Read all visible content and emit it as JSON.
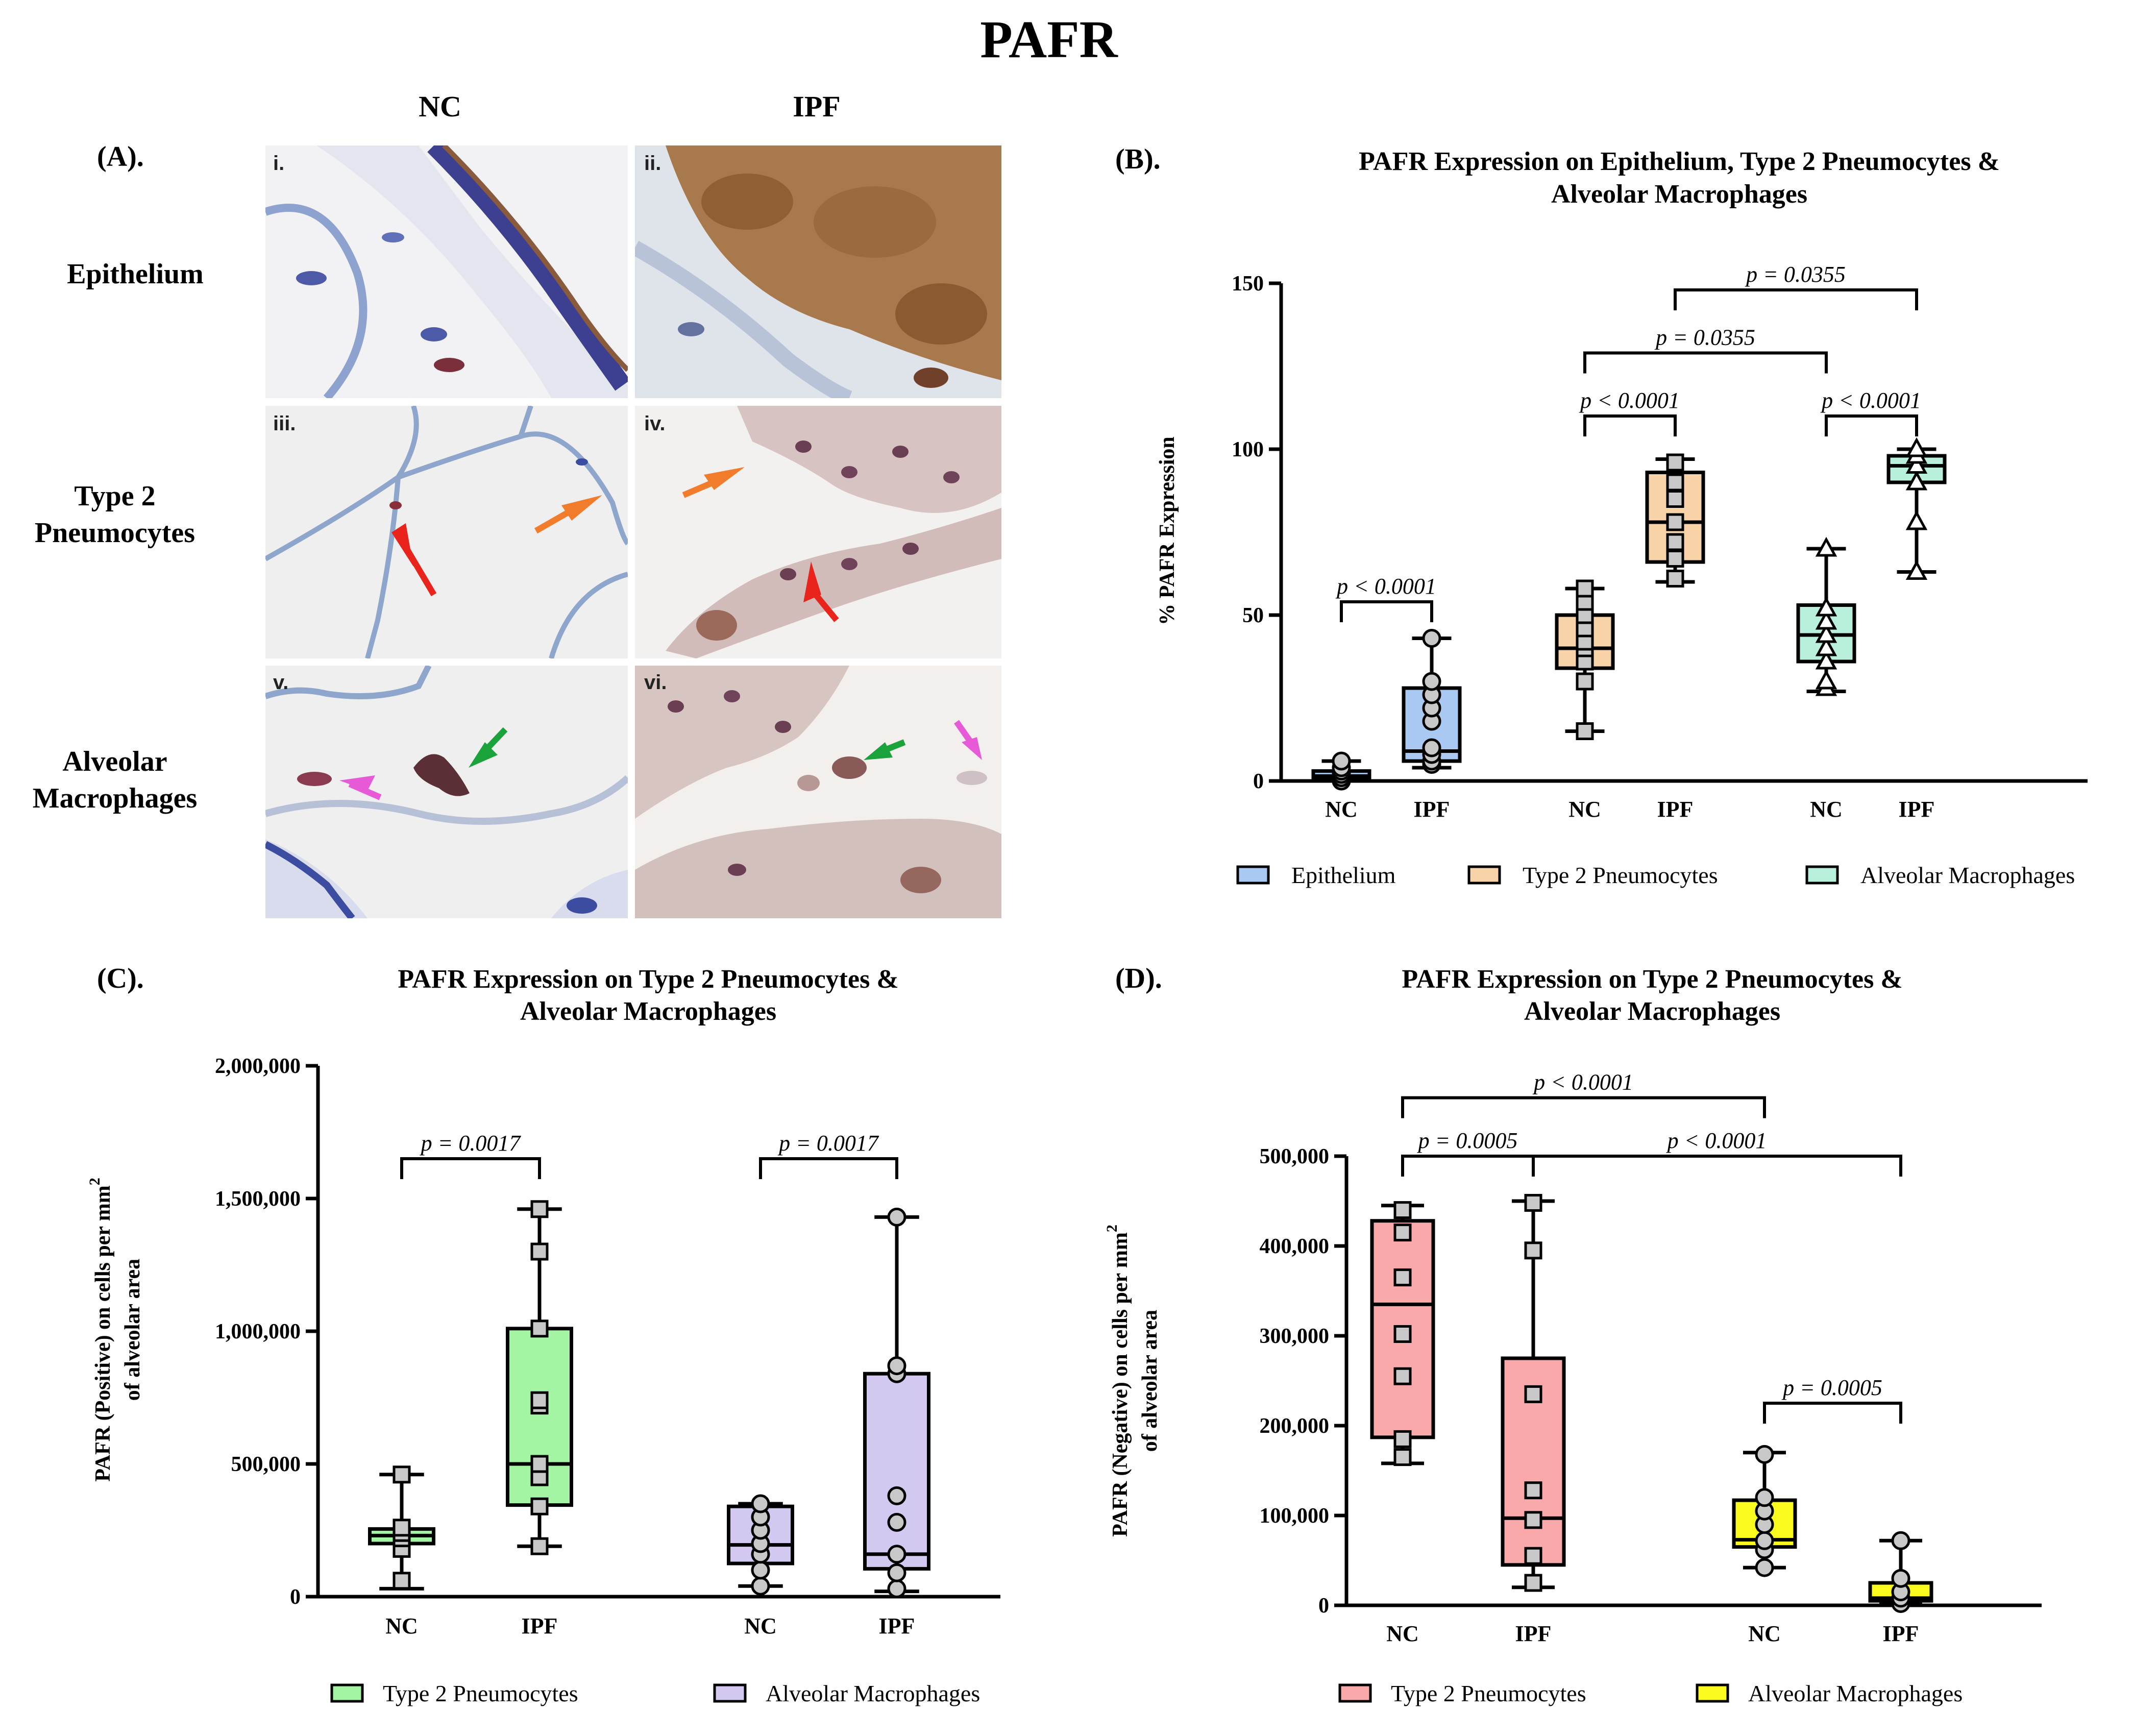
{
  "figure_title": "PAFR",
  "panel_a": {
    "label": "(A).",
    "col_headers": [
      "NC",
      "IPF"
    ],
    "row_labels": [
      {
        "lines": [
          "Epithelium"
        ]
      },
      {
        "lines": [
          "Type 2",
          "Pneumocytes"
        ]
      },
      {
        "lines": [
          "Alveolar",
          "Macrophages"
        ]
      }
    ],
    "image_labels": [
      "i.",
      "ii.",
      "iii.",
      "iv.",
      "v.",
      "vi."
    ],
    "colors": {
      "stain_brown": "#9a6438",
      "stain_blue": "#3d4f9a",
      "bg": "#eeeeee",
      "arrow_red": "#e8241c",
      "arrow_orange": "#f07c2c",
      "arrow_green": "#1aa33a",
      "arrow_pink": "#e65ad8"
    }
  },
  "chart_data": [
    {
      "id": "B",
      "type": "box",
      "panel_label": "(B).",
      "title": "PAFR  Expression on Epithelium, Type 2 Pneumocytes & Alveolar Macrophages",
      "title_lines": [
        "PAFR  Expression on Epithelium, Type 2 Pneumocytes &",
        "Alveolar Macrophages"
      ],
      "ylabel": "% PAFR Expression",
      "ylabel_lines": [
        "% PAFR Expression"
      ],
      "ylim": [
        0,
        150
      ],
      "yticks": [
        0,
        50,
        100,
        150
      ],
      "ytick_labels": [
        "0",
        "50",
        "100",
        "150"
      ],
      "groups": [
        {
          "label": "NC",
          "series": "Epithelium",
          "color": "#a9c9f2",
          "marker": "circle",
          "min": 0,
          "q1": 0.5,
          "median": 1.5,
          "q3": 3,
          "max": 6,
          "points": [
            0,
            0,
            1,
            1,
            2,
            2,
            3,
            4,
            6
          ]
        },
        {
          "label": "IPF",
          "series": "Epithelium",
          "color": "#a9c9f2",
          "marker": "circle",
          "min": 4,
          "q1": 6,
          "median": 9,
          "q3": 28,
          "max": 43,
          "points": [
            5,
            6,
            8,
            10,
            18,
            22,
            26,
            30,
            43
          ]
        },
        {
          "label": "NC",
          "series": "Type 2 Pneumocytes",
          "color": "#f8d3a8",
          "marker": "square",
          "min": 15,
          "q1": 34,
          "median": 40,
          "q3": 50,
          "max": 58,
          "points": [
            15,
            30,
            36,
            40,
            42,
            46,
            50,
            54,
            58
          ]
        },
        {
          "label": "IPF",
          "series": "Type 2 Pneumocytes",
          "color": "#f8d3a8",
          "marker": "square",
          "min": 60,
          "q1": 66,
          "median": 78,
          "q3": 93,
          "max": 97,
          "points": [
            61,
            67,
            72,
            78,
            85,
            90,
            96
          ]
        },
        {
          "label": "NC",
          "series": "Alveolar Macrophages",
          "color": "#b8f0dc",
          "marker": "triangle",
          "min": 27,
          "q1": 36,
          "median": 44,
          "q3": 53,
          "max": 70,
          "points": [
            28,
            30,
            36,
            40,
            44,
            48,
            52,
            70
          ]
        },
        {
          "label": "IPF",
          "series": "Alveolar Macrophages",
          "color": "#b8f0dc",
          "marker": "triangle",
          "min": 63,
          "q1": 90,
          "median": 95,
          "q3": 98,
          "max": 100,
          "points": [
            63,
            78,
            90,
            95,
            98,
            100
          ]
        }
      ],
      "comparisons": [
        {
          "from": 0,
          "to": 1,
          "y": 54,
          "label": "p < 0.0001"
        },
        {
          "from": 2,
          "to": 3,
          "y": 110,
          "label": "p < 0.0001"
        },
        {
          "from": 4,
          "to": 5,
          "y": 110,
          "label": "p < 0.0001"
        },
        {
          "from": 2,
          "to": 4,
          "y": 129,
          "label": "p = 0.0355"
        },
        {
          "from": 3,
          "to": 5,
          "y": 148,
          "label": "p = 0.0355"
        }
      ],
      "legend": [
        {
          "label": "Epithelium",
          "color": "#a9c9f2"
        },
        {
          "label": "Type 2 Pneumocytes",
          "color": "#f8d3a8"
        },
        {
          "label": "Alveolar Macrophages",
          "color": "#b8f0dc"
        }
      ]
    },
    {
      "id": "C",
      "type": "box",
      "panel_label": "(C).",
      "title": "PAFR  Expression on Type 2 Pneumocytes & Alveolar Macrophages",
      "title_lines": [
        "PAFR  Expression on Type 2 Pneumocytes &",
        "Alveolar Macrophages"
      ],
      "ylabel": "PAFR (Positive) on cells per mm2 of alveolar area",
      "ylabel_lines": [
        "PAFR (Positive) on cells per mm",
        "of alveolar area"
      ],
      "ylabel_sup": "2",
      "ylim": [
        0,
        2000000
      ],
      "yticks": [
        0,
        500000,
        1000000,
        1500000,
        2000000
      ],
      "ytick_labels": [
        "0",
        "500,000",
        "1,000,000",
        "1,500,000",
        "2,000,000"
      ],
      "groups": [
        {
          "label": "NC",
          "series": "Type 2 Pneumocytes",
          "color": "#a3f5a3",
          "marker": "square",
          "min": 30000,
          "q1": 200000,
          "median": 230000,
          "q3": 255000,
          "max": 460000,
          "points": [
            60000,
            180000,
            220000,
            240000,
            260000,
            460000
          ]
        },
        {
          "label": "IPF",
          "series": "Type 2 Pneumocytes",
          "color": "#a3f5a3",
          "marker": "square",
          "min": 190000,
          "q1": 345000,
          "median": 500000,
          "q3": 1010000,
          "max": 1460000,
          "points": [
            190000,
            340000,
            450000,
            500000,
            720000,
            740000,
            1010000,
            1300000,
            1460000
          ]
        },
        {
          "label": "NC",
          "series": "Alveolar Macrophages",
          "color": "#d2c8f0",
          "marker": "circle",
          "min": 40000,
          "q1": 125000,
          "median": 195000,
          "q3": 340000,
          "max": 350000,
          "points": [
            40000,
            100000,
            160000,
            200000,
            250000,
            300000,
            350000
          ]
        },
        {
          "label": "IPF",
          "series": "Alveolar Macrophages",
          "color": "#d2c8f0",
          "marker": "circle",
          "min": 20000,
          "q1": 105000,
          "median": 160000,
          "q3": 840000,
          "max": 1430000,
          "points": [
            30000,
            90000,
            160000,
            280000,
            380000,
            840000,
            870000,
            1430000
          ]
        }
      ],
      "comparisons": [
        {
          "from": 0,
          "to": 1,
          "y": 1650000,
          "label": "p = 0.0017"
        },
        {
          "from": 2,
          "to": 3,
          "y": 1650000,
          "label": "p = 0.0017"
        }
      ],
      "legend": [
        {
          "label": "Type 2 Pneumocytes",
          "color": "#a3f5a3"
        },
        {
          "label": "Alveolar Macrophages",
          "color": "#d2c8f0"
        }
      ]
    },
    {
      "id": "D",
      "type": "box",
      "panel_label": "(D).",
      "title": "PAFR  Expression on Type 2 Pneumocytes & Alveolar Macrophages",
      "title_lines": [
        "PAFR  Expression on Type 2 Pneumocytes &",
        "Alveolar Macrophages"
      ],
      "ylabel": "PAFR (Negative) on cells per mm2 of alveolar area",
      "ylabel_lines": [
        "PAFR (Negative) on cells per mm",
        "of alveolar area"
      ],
      "ylabel_sup": "2",
      "ylim": [
        0,
        500000
      ],
      "yticks": [
        0,
        100000,
        200000,
        300000,
        400000,
        500000
      ],
      "ytick_labels": [
        "0",
        "100,000",
        "200,000",
        "300,000",
        "400,000",
        "500,000"
      ],
      "groups": [
        {
          "label": "NC",
          "series": "Type 2 Pneumocytes",
          "color": "#f9a9a9",
          "marker": "square",
          "min": 158000,
          "q1": 187000,
          "median": 335000,
          "q3": 428000,
          "max": 445000,
          "points": [
            165000,
            185000,
            255000,
            302000,
            365000,
            415000,
            440000
          ]
        },
        {
          "label": "IPF",
          "series": "Type 2 Pneumocytes",
          "color": "#f9a9a9",
          "marker": "square",
          "min": 20000,
          "q1": 45000,
          "median": 97000,
          "q3": 275000,
          "max": 450000,
          "points": [
            25000,
            55000,
            95000,
            128000,
            235000,
            395000,
            448000
          ]
        },
        {
          "label": "NC",
          "series": "Alveolar Macrophages",
          "color": "#fafa1e",
          "marker": "circle",
          "min": 42000,
          "q1": 65000,
          "median": 73000,
          "q3": 117000,
          "max": 170000,
          "points": [
            42000,
            62000,
            72000,
            90000,
            105000,
            120000,
            168000
          ]
        },
        {
          "label": "IPF",
          "series": "Alveolar Macrophages",
          "color": "#fafa1e",
          "marker": "circle",
          "min": 2000,
          "q1": 5000,
          "median": 8000,
          "q3": 25000,
          "max": 72000,
          "points": [
            2000,
            8000,
            15000,
            30000,
            72000
          ]
        }
      ],
      "comparisons": [
        {
          "from": 0,
          "to": 1,
          "y": 500000,
          "label": "p = 0.0005"
        },
        {
          "from": 2,
          "to": 3,
          "y": 225000,
          "label": "p = 0.0005"
        },
        {
          "from": 1,
          "to": 3,
          "y": 500000,
          "label": "p < 0.0001"
        },
        {
          "from": 0,
          "to": 2,
          "y": 565000,
          "label": "p < 0.0001"
        }
      ],
      "legend": [
        {
          "label": "Type 2 Pneumocytes",
          "color": "#f9a9a9"
        },
        {
          "label": "Alveolar Macrophages",
          "color": "#fafa1e"
        }
      ]
    }
  ]
}
